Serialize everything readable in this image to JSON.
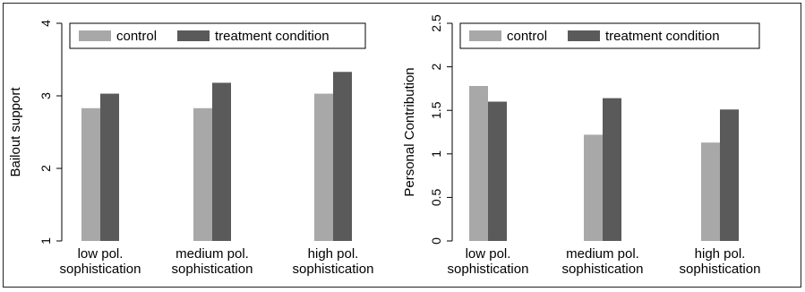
{
  "colors": {
    "control": "#a8a8a8",
    "treatment": "#5a5a5a",
    "axis": "#000000",
    "frame": "#222222"
  },
  "chart_data": [
    {
      "type": "bar",
      "ylabel": "Bailout support",
      "ylim": [
        1,
        4
      ],
      "yticks": [
        1,
        2,
        3,
        4
      ],
      "ytick_labels": [
        "1",
        "2",
        "3",
        "4"
      ],
      "grid": false,
      "legend_position": "top",
      "categories": [
        [
          "low pol.",
          "sophistication"
        ],
        [
          "medium pol.",
          "sophistication"
        ],
        [
          "high pol.",
          "sophistication"
        ]
      ],
      "series": [
        {
          "name": "control",
          "values": [
            2.83,
            2.83,
            3.03
          ]
        },
        {
          "name": "treatment condition",
          "values": [
            3.03,
            3.18,
            3.33
          ]
        }
      ]
    },
    {
      "type": "bar",
      "ylabel": "Personal Contribution",
      "ylim": [
        0,
        2.5
      ],
      "yticks": [
        0,
        0.5,
        1,
        1.5,
        2,
        2.5
      ],
      "ytick_labels": [
        "0",
        "0.5",
        "1",
        "1.5",
        "2",
        "2.5"
      ],
      "grid": false,
      "legend_position": "top",
      "categories": [
        [
          "low pol.",
          "sophistication"
        ],
        [
          "medium pol.",
          "sophistication"
        ],
        [
          "high pol.",
          "sophistication"
        ]
      ],
      "series": [
        {
          "name": "control",
          "values": [
            1.78,
            1.22,
            1.13
          ]
        },
        {
          "name": "treatment condition",
          "values": [
            1.6,
            1.64,
            1.51
          ]
        }
      ]
    }
  ]
}
